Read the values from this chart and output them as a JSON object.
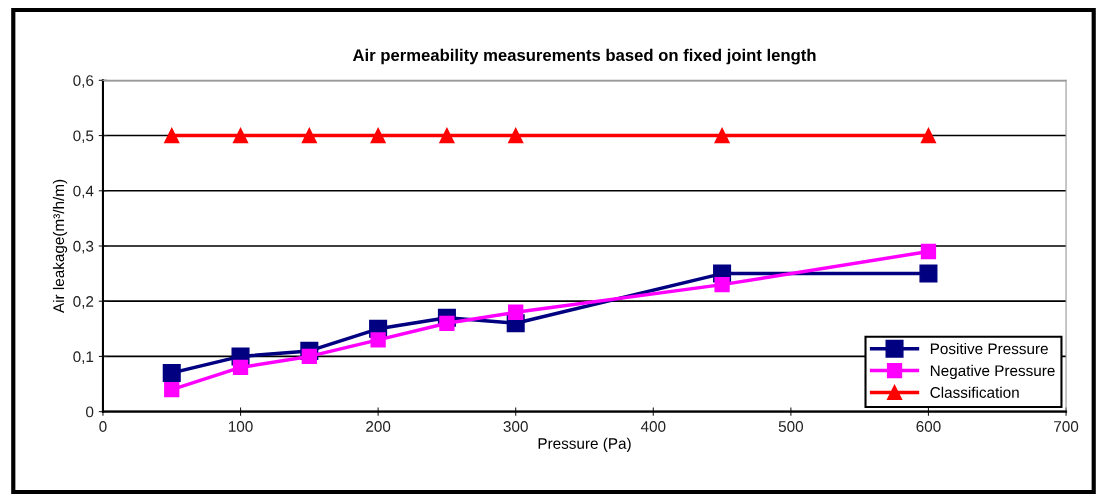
{
  "chart_data": {
    "type": "line",
    "title": "Air permeability measurements based on fixed joint length",
    "xlabel": "Pressure (Pa)",
    "ylabel": "Air leakage(m³/h/m)",
    "x": [
      50,
      100,
      150,
      200,
      250,
      300,
      450,
      600
    ],
    "series": [
      {
        "name": "Positive Pressure",
        "color": "#000080",
        "marker": "square",
        "values": [
          0.07,
          0.1,
          0.11,
          0.15,
          0.17,
          0.16,
          0.25,
          0.25
        ]
      },
      {
        "name": "Negative Pressure",
        "color": "#ff00ff",
        "marker": "square",
        "values": [
          0.04,
          0.08,
          0.1,
          0.13,
          0.16,
          0.18,
          0.23,
          0.29
        ]
      },
      {
        "name": "Classification",
        "color": "#ff0000",
        "marker": "triangle",
        "values": [
          0.5,
          0.5,
          0.5,
          0.5,
          0.5,
          0.5,
          0.5,
          0.5
        ]
      }
    ],
    "xlim": [
      0,
      700
    ],
    "xticks": [
      0,
      100,
      200,
      300,
      400,
      500,
      600,
      700
    ],
    "ylim": [
      0,
      0.6
    ],
    "yticks": [
      0,
      {
        "value": 0.1,
        "label": "0,1"
      },
      {
        "value": 0.2,
        "label": "0,2"
      },
      {
        "value": 0.3,
        "label": "0,3"
      },
      {
        "value": 0.4,
        "label": "0,4"
      },
      {
        "value": 0.5,
        "label": "0,5"
      },
      {
        "value": 0.6,
        "label": "0,6"
      }
    ],
    "grid": "y",
    "legend": "lower right",
    "line_style": "solid"
  }
}
